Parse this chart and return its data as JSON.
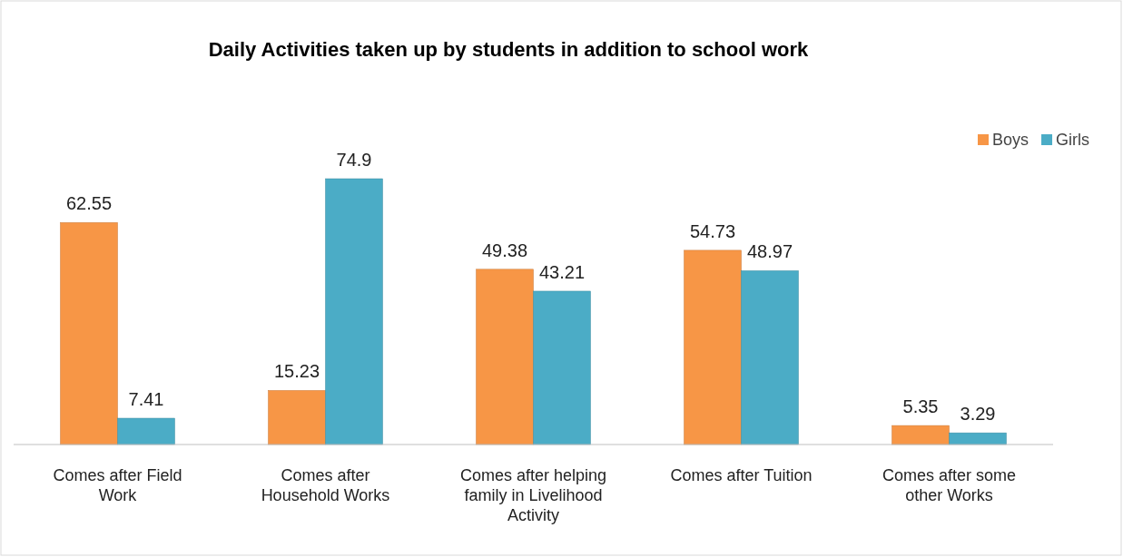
{
  "chart_data": {
    "type": "bar",
    "title": "Daily Activities taken up by students in addition to school work",
    "categories": [
      "Comes after Field Work",
      "Comes after Household Works",
      "Comes after helping family in Livelihood Activity",
      "Comes after Tuition",
      "Comes after some other Works"
    ],
    "series": [
      {
        "name": "Boys",
        "color": "#f79646",
        "values": [
          62.55,
          15.23,
          49.38,
          54.73,
          5.35
        ]
      },
      {
        "name": "Girls",
        "color": "#4bacc6",
        "values": [
          7.41,
          74.9,
          43.21,
          48.97,
          3.29
        ]
      }
    ],
    "relative": false,
    "data_labels": true,
    "legend": "top right"
  }
}
